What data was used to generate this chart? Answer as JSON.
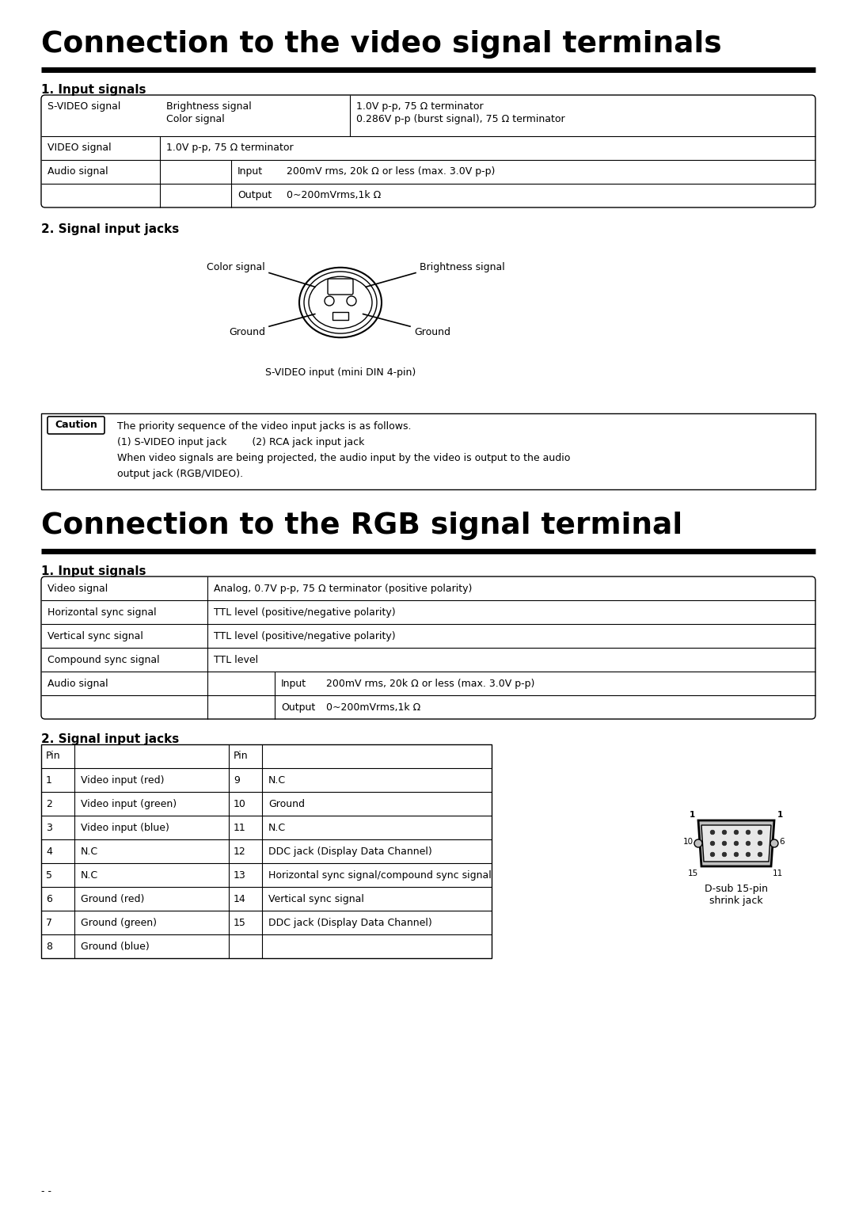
{
  "title1": "Connection to the video signal terminals",
  "title2": "Connection to the RGB signal terminal",
  "section1_sub1": "1. Input signals",
  "section1_sub2": "2. Signal input jacks",
  "section2_sub1": "1. Input signals",
  "section2_sub2": "2. Signal input jacks",
  "bg_color": "#ffffff",
  "caution_text_line1": "The priority sequence of the video input jacks is as follows.",
  "caution_text_line2": "(1) S-VIDEO input jack        (2) RCA jack input jack",
  "caution_text_line3": "When video signals are being projected, the audio input by the video is output to the audio",
  "caution_text_line4": "output jack (RGB/VIDEO).",
  "svideo_caption": "S-VIDEO input (mini DIN 4-pin)",
  "dsub_caption": "D-sub 15-pin\nshrink jack",
  "footer": "- -"
}
